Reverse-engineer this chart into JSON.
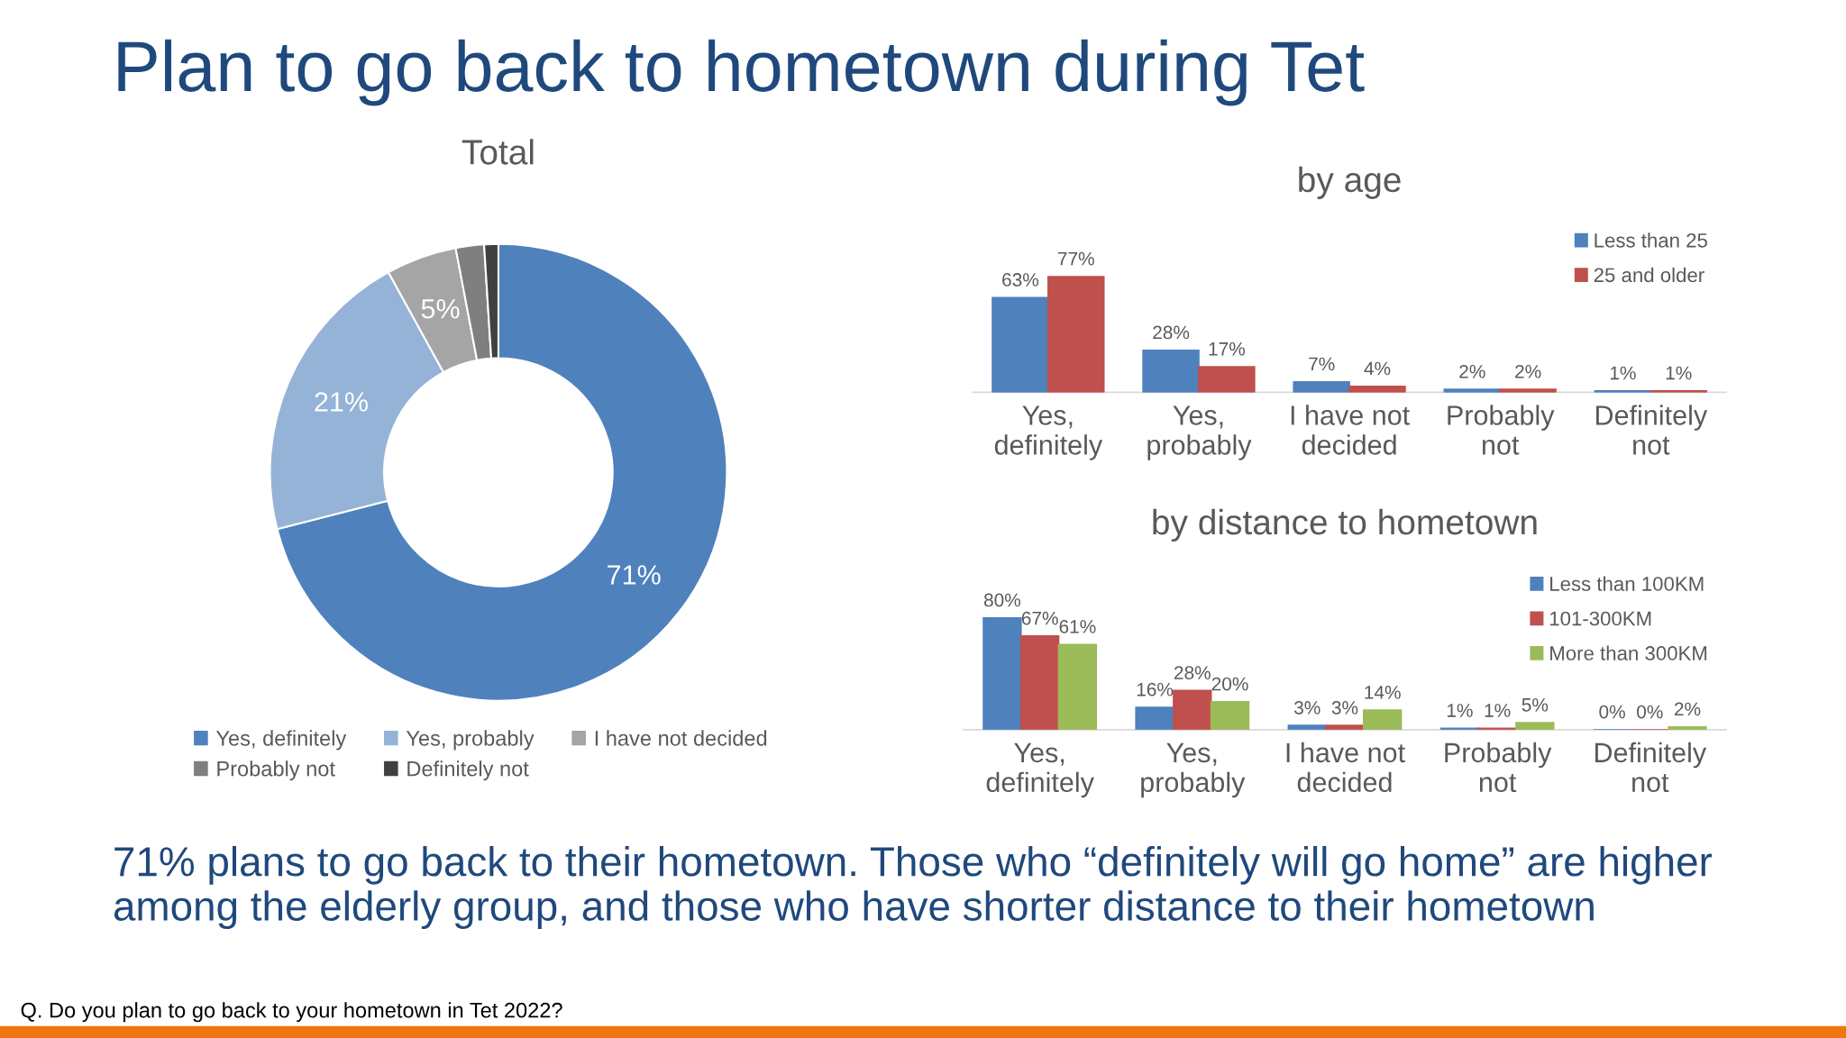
{
  "chart_data": [
    {
      "type": "donut",
      "title": "Total",
      "annotations": [
        "Plan to go back to hometown during Tet",
        "71% plans to go back to their hometown. Those who “definitely will go home” are higher among the elderly group, and those who have shorter distance to their hometown",
        "Q. Do you plan to go back to your hometown in Tet 2022?"
      ],
      "categories": [
        "Yes, definitely",
        "Yes, probably",
        "I have not decided",
        "Probably not",
        "Definitely not"
      ],
      "values": [
        71,
        21,
        5,
        2,
        1
      ],
      "value_labels": [
        "71%",
        "21%",
        "5%",
        null,
        null
      ],
      "colors": [
        "#4f81bd",
        "#95b3d7",
        "#a5a5a5",
        "#7f7f7f",
        "#404040"
      ],
      "legend": "bottom"
    },
    {
      "type": "bar",
      "title": "by age",
      "categories": [
        "Yes,\ndefinitely",
        "Yes,\nprobably",
        "I have not\ndecided",
        "Probably\nnot",
        "Definitely\nnot"
      ],
      "series": [
        {
          "name": "Less than 25",
          "color": "#4f81bd",
          "values": [
            63,
            28,
            7,
            2,
            1
          ],
          "value_labels": [
            "63%",
            "28%",
            "7%",
            "2%",
            "1%"
          ]
        },
        {
          "name": "25 and older",
          "color": "#c0504d",
          "values": [
            77,
            17,
            4,
            2,
            1
          ],
          "value_labels": [
            "77%",
            "17%",
            "4%",
            "2%",
            "1%"
          ]
        }
      ],
      "legend": "top right"
    },
    {
      "type": "bar",
      "title": "by distance to hometown",
      "categories": [
        "Yes,\ndefinitely",
        "Yes,\nprobably",
        "I have not\ndecided",
        "Probably\nnot",
        "Definitely\nnot"
      ],
      "series": [
        {
          "name": "Less than 100KM",
          "color": "#4f81bd",
          "values": [
            80,
            16,
            3,
            1,
            0
          ],
          "value_labels": [
            "80%",
            "16%",
            "3%",
            "1%",
            "0%"
          ]
        },
        {
          "name": "101-300KM",
          "color": "#c0504d",
          "values": [
            67,
            28,
            3,
            1,
            0
          ],
          "value_labels": [
            "67%",
            "28%",
            "3%",
            "1%",
            "0%"
          ]
        },
        {
          "name": "More than 300KM",
          "color": "#9bbb59",
          "values": [
            61,
            20,
            14,
            5,
            2
          ],
          "value_labels": [
            "61%",
            "20%",
            "14%",
            "5%",
            "2%"
          ]
        }
      ],
      "legend": "top right"
    }
  ]
}
